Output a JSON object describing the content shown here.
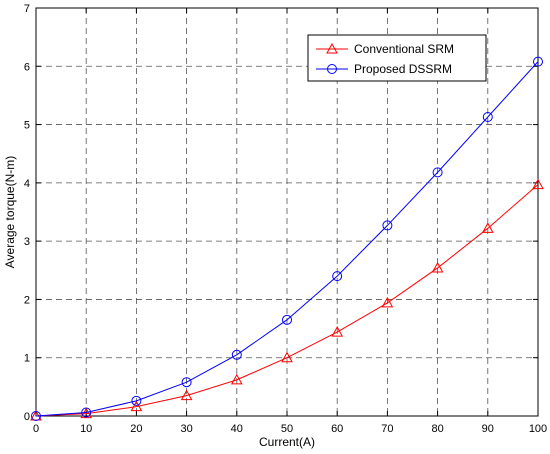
{
  "chart_data": {
    "type": "line",
    "title": "",
    "xlabel": "Current(A)",
    "ylabel": "Average torque(N-m)",
    "xlim": [
      0,
      100
    ],
    "ylim": [
      0,
      7
    ],
    "xticks": [
      0,
      10,
      20,
      30,
      40,
      50,
      60,
      70,
      80,
      90,
      100
    ],
    "yticks": [
      0,
      1,
      2,
      3,
      4,
      5,
      6,
      7
    ],
    "grid": true,
    "legend_position": "top-right",
    "x": [
      0,
      10,
      20,
      30,
      40,
      50,
      60,
      70,
      80,
      90,
      100
    ],
    "series": [
      {
        "name": "Conventional SRM",
        "color": "#ff0000",
        "marker": "triangle",
        "values": [
          0,
          0.04,
          0.16,
          0.35,
          0.62,
          1.0,
          1.44,
          1.94,
          2.54,
          3.22,
          3.97
        ]
      },
      {
        "name": "Proposed DSSRM",
        "color": "#0000ff",
        "marker": "circle",
        "values": [
          0,
          0.06,
          0.26,
          0.58,
          1.05,
          1.65,
          2.4,
          3.27,
          4.18,
          5.13,
          6.08
        ]
      }
    ]
  }
}
